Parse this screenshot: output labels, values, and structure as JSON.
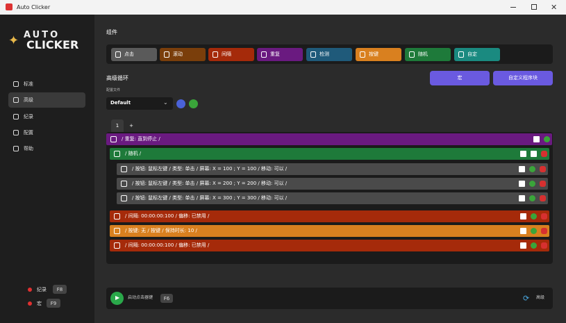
{
  "window": {
    "title": "Auto Clicker"
  },
  "logo": {
    "line1": "AUTO",
    "line2": "CLICKER"
  },
  "sidebar": {
    "items": [
      "标准",
      "高级",
      "纪录",
      "配置",
      "帮助"
    ],
    "hotkeys": [
      {
        "label": "纪录",
        "key": "F8"
      },
      {
        "label": "宏",
        "key": "F9"
      }
    ]
  },
  "components": {
    "title": "组件",
    "items": [
      "点击",
      "滚动",
      "间隔",
      "重复",
      "检测",
      "按键",
      "随机",
      "自定"
    ]
  },
  "loop": {
    "title": "高级循环",
    "buttons": [
      "宏",
      "自定义程序块"
    ],
    "profile_label": "配置文件",
    "profile": "Default",
    "tabs": [
      "1",
      "+"
    ],
    "rows": [
      "/ 重复: 直到停止 /",
      "/ 随机 /",
      "/ 按钮: 鼠标左键 / 类型: 单击 / 屏幕: X = 100 ; Y = 100 / 移动: 可以 /",
      "/ 按钮: 鼠标左键 / 类型: 单击 / 屏幕: X = 200 ; Y = 200 / 移动: 可以 /",
      "/ 按钮: 鼠标左键 / 类型: 单击 / 屏幕: X = 300 ; Y = 300 / 移动: 可以 /",
      "/ 间隔: 00:00:00:100 / 偏移: 已禁用 /",
      "/ 按键: 无 / 按键 / 保持时长: 10 /",
      "/ 间隔: 00:00:00:100 / 偏移: 已禁用 /"
    ]
  },
  "footer": {
    "label": "启动点击器键",
    "key": "F6",
    "mode": "高级"
  }
}
